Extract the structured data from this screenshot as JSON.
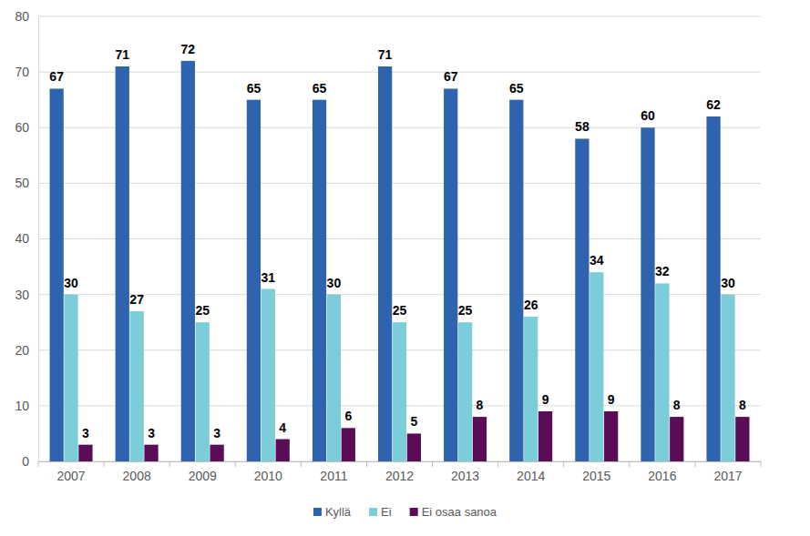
{
  "chart_data": {
    "type": "bar",
    "categories": [
      "2007",
      "2008",
      "2009",
      "2010",
      "2011",
      "2012",
      "2013",
      "2014",
      "2015",
      "2016",
      "2017"
    ],
    "series": [
      {
        "name": "Kyllä",
        "color": "#2e63ae",
        "values": [
          67,
          71,
          72,
          65,
          65,
          71,
          67,
          65,
          58,
          60,
          62
        ]
      },
      {
        "name": "Ei",
        "color": "#7acdd9",
        "values": [
          30,
          27,
          25,
          31,
          30,
          25,
          25,
          26,
          34,
          32,
          30
        ]
      },
      {
        "name": "Ei osaa sanoa",
        "color": "#5b0c57",
        "values": [
          3,
          3,
          3,
          4,
          6,
          5,
          8,
          9,
          9,
          8,
          8
        ]
      }
    ],
    "ylim": [
      0,
      80
    ],
    "yticks": [
      0,
      10,
      20,
      30,
      40,
      50,
      60,
      70,
      80
    ],
    "grid": true,
    "data_labels": true,
    "legend": "bottom"
  }
}
